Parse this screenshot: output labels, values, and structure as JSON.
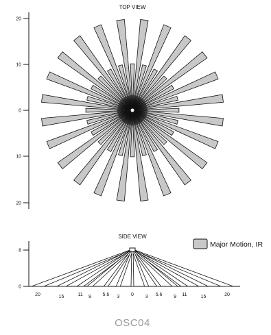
{
  "top_view": {
    "title": "TOP VIEW",
    "y_ticks": [
      "20",
      "10",
      "0",
      "10",
      "20"
    ],
    "colors": {
      "beam_fill": "#c8c8c8",
      "beam_stroke": "#111111"
    }
  },
  "side_view": {
    "title": "SIDE VIEW",
    "y_ticks": [
      "8",
      "0"
    ],
    "x_ticks": [
      "20",
      "15",
      "11",
      "9",
      "5.6",
      "3",
      "0",
      "3",
      "5.6",
      "9",
      "11",
      "15",
      "20"
    ],
    "colors": {
      "beam_fill": "#ffffff",
      "beam_stroke": "#111111"
    }
  },
  "legend": {
    "label": "Major Motion, IR",
    "swatch_color": "#c8c8c8"
  },
  "model": "OSC04"
}
